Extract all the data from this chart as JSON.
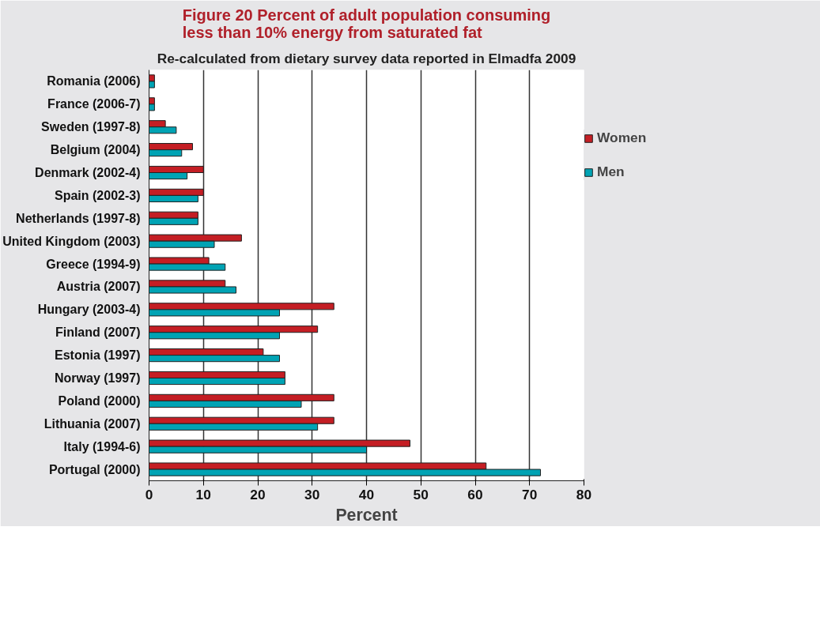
{
  "chart_data": {
    "type": "bar",
    "orientation": "horizontal",
    "title": "Figure 20 Percent of adult population consuming less than 10% energy from saturated fat",
    "subtitle": "Re-calculated from dietary survey data reported in Elmadfa 2009",
    "xlabel": "Percent",
    "categories": [
      "Romania (2006)",
      "France (2006-7)",
      "Sweden (1997-8)",
      "Belgium (2004)",
      "Denmark (2002-4)",
      "Spain (2002-3)",
      "Netherlands (1997-8)",
      "United Kingdom (2003)",
      "Greece (1994-9)",
      "Austria (2007)",
      "Hungary (2003-4)",
      "Finland (2007)",
      "Estonia (1997)",
      "Norway (1997)",
      "Poland (2000)",
      "Lithuania (2007)",
      "Italy (1994-6)",
      "Portugal (2000)"
    ],
    "series": [
      {
        "name": "Women",
        "color": "#c41e24",
        "values": [
          1,
          1,
          3,
          8,
          10,
          10,
          9,
          17,
          11,
          14,
          34,
          31,
          21,
          25,
          34,
          34,
          48,
          62
        ]
      },
      {
        "name": "Men",
        "color": "#00a3b4",
        "values": [
          1,
          1,
          5,
          6,
          7,
          9,
          9,
          12,
          14,
          16,
          24,
          24,
          24,
          25,
          28,
          31,
          40,
          72
        ]
      }
    ],
    "xlim": [
      0,
      80
    ],
    "xticks": [
      0,
      10,
      20,
      30,
      40,
      50,
      60,
      70,
      80
    ],
    "grid": "x",
    "legend": "right"
  }
}
